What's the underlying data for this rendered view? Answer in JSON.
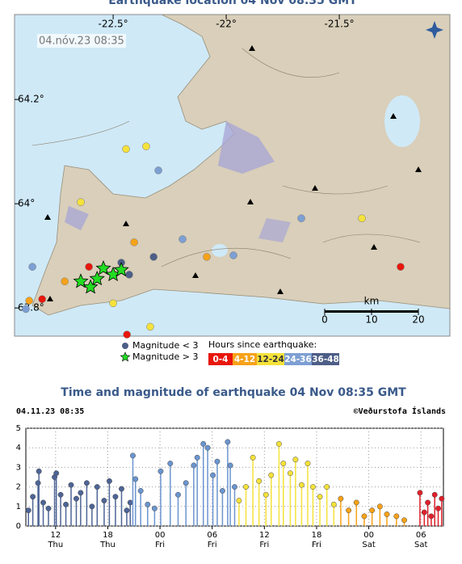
{
  "map": {
    "title": "Earthquake location   04 Nov 08:35 GMT",
    "stamp": "04.nóv.23  08:35",
    "lonlim": [
      -22.936,
      -21.011
    ],
    "latlim": [
      63.746,
      64.363
    ],
    "lonticks": [
      {
        "value": -22.5,
        "label": "-22.5°"
      },
      {
        "value": -22,
        "label": "-22°"
      },
      {
        "value": -21.5,
        "label": "-21.5°"
      }
    ],
    "latticks": [
      {
        "value": 64.2,
        "label": "64.2°"
      },
      {
        "value": 64,
        "label": "64°"
      },
      {
        "value": 63.8,
        "label": "63.8°"
      }
    ],
    "scale": {
      "ticks": [
        {
          "value": 0,
          "label": "0"
        },
        {
          "value": 10,
          "label": "10"
        },
        {
          "value": 20,
          "label": "20"
        }
      ],
      "unit": "km"
    },
    "legend_small": "Magnitude < 3",
    "legend_large": "Magnitude > 3",
    "legend_hours": "Hours since earthquake:",
    "quakes": [
      {
        "name": "0-4",
        "color": "#e8170c",
        "lon": [
          -22.607,
          -21.229,
          -22.439,
          -22.814
        ],
        "lat": [
          63.879,
          63.879,
          63.749,
          63.817
        ]
      },
      {
        "name": "4-12",
        "color": "#f7a219",
        "lon": [
          -22.407,
          -22.086,
          -22.871,
          -22.714
        ],
        "lat": [
          63.926,
          63.898,
          63.814,
          63.851
        ]
      },
      {
        "name": "12-24",
        "color": "#f5e23a",
        "lon": [
          -22.443,
          -22.354,
          -22.643,
          -21.4,
          -22.5,
          -22.336
        ],
        "lat": [
          64.105,
          64.11,
          64.003,
          63.972,
          63.809,
          63.764
        ]
      },
      {
        "name": "24-36",
        "color": "#7d9fd3",
        "lon": [
          -22.3,
          -21.668,
          -21.968,
          -22.857,
          -22.193,
          -22.886
        ],
        "lat": [
          64.064,
          63.972,
          63.901,
          63.879,
          63.932,
          63.798
        ]
      },
      {
        "name": "36-48",
        "color": "#4d5e87",
        "lon": [
          -22.464,
          -22.429,
          -22.321
        ],
        "lat": [
          63.887,
          63.864,
          63.898
        ]
      }
    ],
    "stars": {
      "color": "#22dd22",
      "lon": [
        -22.643,
        -22.571,
        -22.543,
        -22.5,
        -22.464,
        -22.6
      ],
      "lat": [
        63.851,
        63.856,
        63.876,
        63.864,
        63.873,
        63.84
      ]
    }
  },
  "chart_data": {
    "type": "stem",
    "title": "Time and magnitude of earthquake   04 Nov 08:35 GMT",
    "stamp": "04.11.23 08:35",
    "credit": "©Veðurstofa Íslands",
    "xlim": [
      0,
      48
    ],
    "ylim": [
      0,
      5
    ],
    "yticks": [
      0,
      1,
      2,
      3,
      4,
      5
    ],
    "xticks": [
      {
        "value": 3.42,
        "label": "12"
      },
      {
        "value": 9.42,
        "label": "18"
      },
      {
        "value": 15.42,
        "label": "00"
      },
      {
        "value": 21.42,
        "label": "06"
      },
      {
        "value": 27.42,
        "label": "12"
      },
      {
        "value": 33.42,
        "label": "18"
      },
      {
        "value": 39.42,
        "label": "00"
      },
      {
        "value": 45.42,
        "label": "06"
      }
    ],
    "xtick_days": [
      "Thu",
      "Thu",
      "Fri",
      "Fri",
      "Fri",
      "Fri",
      "Sat",
      "Sat"
    ],
    "grid": true,
    "series": [
      {
        "name": "36-48",
        "color": "#4d6496",
        "x": [
          0.3,
          0.8,
          1.4,
          1.5,
          2.0,
          2.6,
          3.3,
          3.5,
          4.0,
          4.6,
          5.2,
          5.8,
          6.3,
          7.0,
          7.6,
          8.2,
          9.0,
          9.6,
          10.3,
          11.0,
          11.6,
          12.0
        ],
        "values": [
          0.8,
          1.5,
          2.2,
          2.8,
          1.2,
          0.9,
          2.5,
          2.7,
          1.6,
          1.1,
          2.1,
          1.4,
          1.7,
          2.2,
          1.0,
          2.0,
          1.3,
          2.3,
          1.5,
          1.9,
          0.8,
          1.2
        ]
      },
      {
        "name": "24-36",
        "color": "#6b95cf",
        "x": [
          12.3,
          12.6,
          13.2,
          14.0,
          14.8,
          15.5,
          16.6,
          17.5,
          18.4,
          19.3,
          19.7,
          20.4,
          20.9,
          21.5,
          22.0,
          22.6,
          23.2,
          23.5,
          24.0
        ],
        "values": [
          3.6,
          2.4,
          1.8,
          1.1,
          0.9,
          2.8,
          3.2,
          1.6,
          2.2,
          3.1,
          3.5,
          4.2,
          4.0,
          2.6,
          3.3,
          1.8,
          4.3,
          3.1,
          2.0
        ]
      },
      {
        "name": "12-24",
        "color": "#f5e23a",
        "x": [
          24.5,
          25.3,
          26.1,
          26.8,
          27.6,
          28.2,
          29.1,
          29.6,
          30.4,
          31.0,
          31.7,
          32.4,
          33.0,
          33.8,
          34.6,
          35.4
        ],
        "values": [
          1.3,
          2.0,
          3.5,
          2.3,
          1.6,
          2.6,
          4.2,
          3.2,
          2.7,
          3.4,
          2.1,
          3.2,
          2.0,
          1.5,
          2.0,
          1.1
        ]
      },
      {
        "name": "4-12",
        "color": "#f7a219",
        "x": [
          36.2,
          37.1,
          38.0,
          38.9,
          39.8,
          40.7,
          41.5,
          42.6,
          43.5
        ],
        "values": [
          1.4,
          0.8,
          1.2,
          0.5,
          0.8,
          1.0,
          0.6,
          0.5,
          0.3
        ]
      },
      {
        "name": "0-4",
        "color": "#e0202a",
        "x": [
          45.3,
          45.8,
          46.2,
          46.6,
          47.0,
          47.4,
          47.8
        ],
        "values": [
          1.7,
          0.7,
          1.2,
          0.5,
          1.6,
          0.9,
          1.4
        ]
      }
    ]
  }
}
